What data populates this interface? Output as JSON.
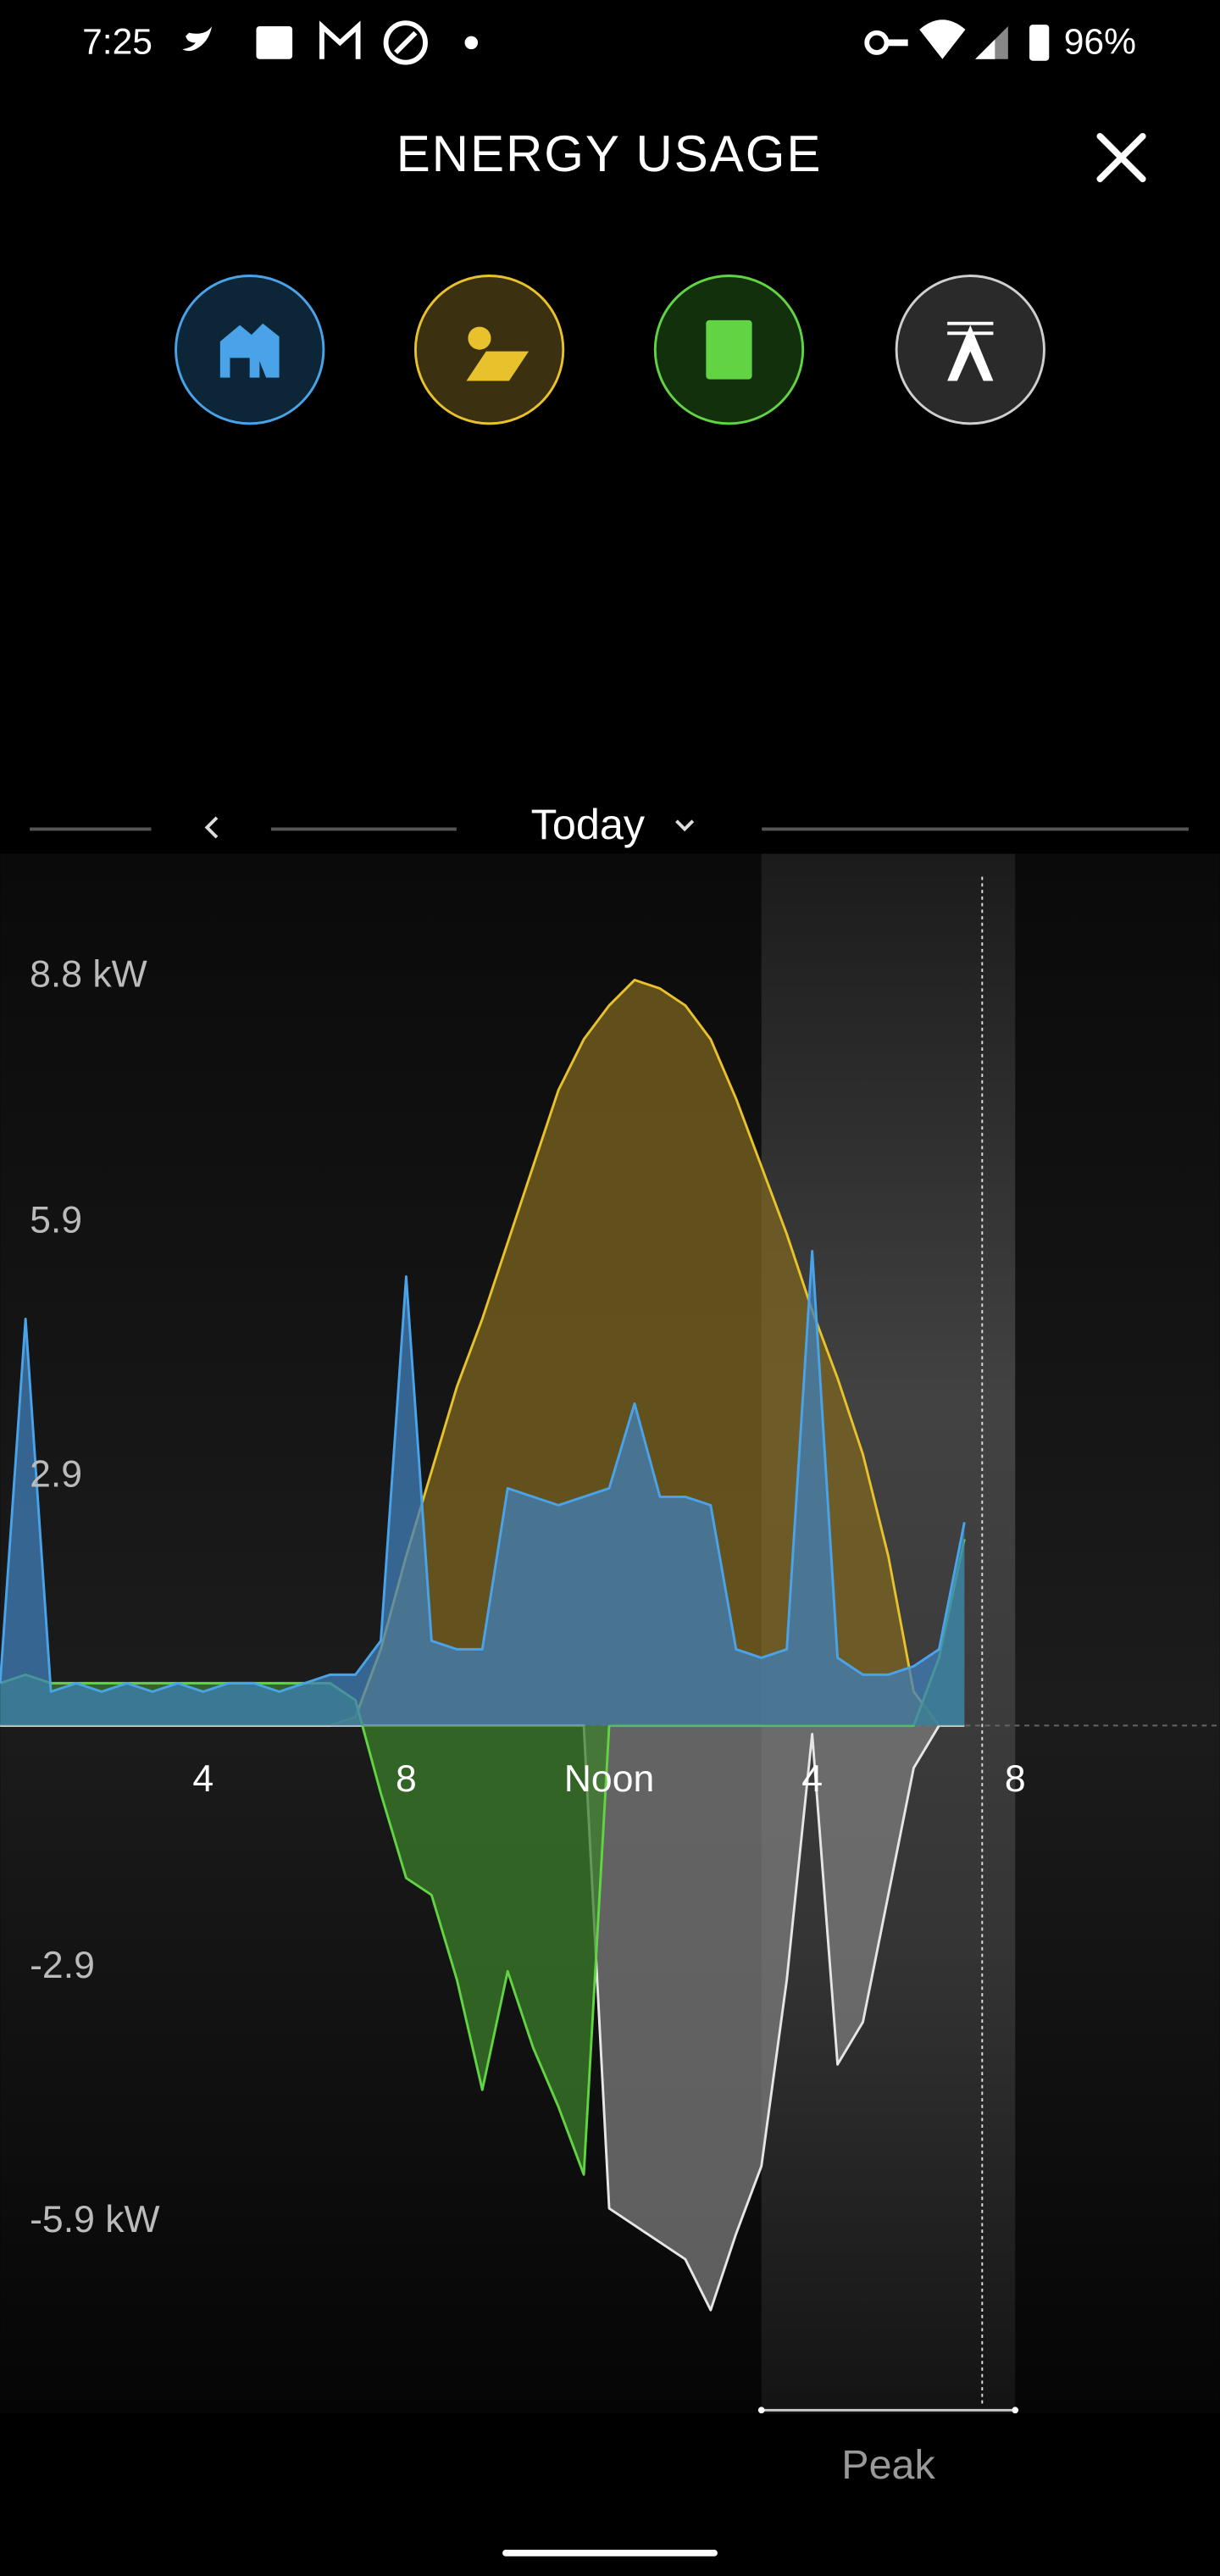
{
  "status_bar": {
    "time": "7:25",
    "battery": "96%"
  },
  "header": {
    "title": "ENERGY USAGE"
  },
  "date_selector": {
    "label": "Today"
  },
  "chart_data": {
    "type": "area",
    "x": [
      0,
      0.5,
      1,
      1.5,
      2,
      2.5,
      3,
      3.5,
      4,
      4.5,
      5,
      5.5,
      6,
      6.5,
      7,
      7.5,
      8,
      8.5,
      9,
      9.5,
      10,
      10.5,
      11,
      11.5,
      12,
      12.5,
      13,
      13.5,
      14,
      14.5,
      15,
      15.5,
      16,
      16.5,
      17,
      17.5,
      18,
      18.5,
      19
    ],
    "series": [
      {
        "name": "Solar",
        "color": "#e8c22c",
        "fill": "#7d6620",
        "values": [
          0,
          0,
          0,
          0,
          0,
          0,
          0,
          0,
          0,
          0,
          0,
          0,
          0,
          0,
          0.1,
          0.9,
          2.0,
          3.0,
          4.0,
          4.8,
          5.7,
          6.6,
          7.5,
          8.1,
          8.5,
          8.8,
          8.7,
          8.5,
          8.1,
          7.4,
          6.6,
          5.8,
          4.9,
          4.1,
          3.2,
          2.0,
          0.4,
          0,
          0
        ]
      },
      {
        "name": "Grid",
        "color": "#e6e6e6",
        "fill": "#7c7c7c",
        "values": [
          0,
          0,
          0,
          0,
          0,
          0,
          0,
          0,
          0,
          0,
          0,
          0,
          0,
          0,
          0,
          0,
          0,
          0,
          0,
          0,
          0,
          0,
          0,
          0,
          -5.7,
          -5.9,
          -6.1,
          -6.3,
          -6.9,
          -6.0,
          -5.2,
          -3.0,
          -0.1,
          -4.0,
          -3.5,
          -2.0,
          -0.5,
          0,
          0
        ]
      },
      {
        "name": "Powerwall",
        "color": "#62d444",
        "fill": "#3a7d2a",
        "values": [
          0.5,
          0.6,
          0.5,
          0.5,
          0.5,
          0.5,
          0.5,
          0.5,
          0.5,
          0.5,
          0.5,
          0.5,
          0.5,
          0.5,
          0.3,
          -0.8,
          -1.8,
          -2.0,
          -3.0,
          -4.3,
          -2.9,
          -3.8,
          -4.5,
          -5.3,
          0,
          0,
          0,
          0,
          0,
          0,
          0,
          0,
          0,
          0,
          0,
          0,
          0,
          0.8,
          2.2
        ]
      },
      {
        "name": "Home",
        "color": "#4aa3e8",
        "fill": "#3f7fb8",
        "values": [
          0.5,
          4.8,
          0.4,
          0.5,
          0.4,
          0.5,
          0.4,
          0.5,
          0.4,
          0.5,
          0.5,
          0.4,
          0.5,
          0.6,
          0.6,
          1.0,
          5.3,
          1.0,
          0.9,
          0.9,
          2.8,
          2.7,
          2.6,
          2.7,
          2.8,
          3.8,
          2.7,
          2.7,
          2.6,
          0.9,
          0.8,
          0.9,
          5.6,
          0.8,
          0.6,
          0.6,
          0.7,
          0.9,
          2.4
        ]
      }
    ],
    "xlim": [
      0,
      24
    ],
    "xticks": [
      4,
      8,
      {
        "value": 12,
        "label": "Noon"
      },
      {
        "value": 16,
        "label": "4"
      },
      {
        "value": 20,
        "label": "8"
      }
    ],
    "ylim": [
      -6.9,
      8.8
    ],
    "yticks": [
      {
        "value": 8.8,
        "label": "8.8 kW"
      },
      5.9,
      2.9,
      -2.9,
      {
        "value": -5.9,
        "label": "-5.9 kW"
      }
    ],
    "grid": false,
    "peak": {
      "label": "Peak",
      "range": [
        15,
        20
      ]
    },
    "now_marker": 19.35
  }
}
